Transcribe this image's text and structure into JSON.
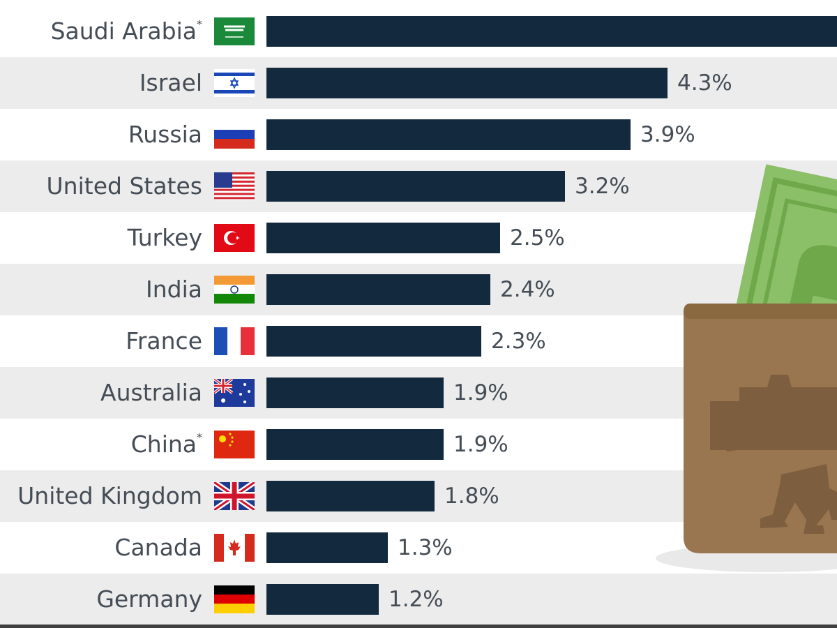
{
  "chart_data": {
    "type": "bar",
    "orientation": "horizontal",
    "categories": [
      "Saudi Arabia",
      "Israel",
      "Russia",
      "United States",
      "Turkey",
      "India",
      "France",
      "Australia",
      "China",
      "United Kingdom",
      "Canada",
      "Germany"
    ],
    "footnote_marks": [
      "*",
      "",
      "",
      "",
      "",
      "",
      "",
      "",
      "*",
      "",
      "",
      ""
    ],
    "values": [
      null,
      4.3,
      3.9,
      3.2,
      2.5,
      2.4,
      2.3,
      1.9,
      1.9,
      1.8,
      1.3,
      1.2
    ],
    "value_labels": [
      "",
      "4.3%",
      "3.9%",
      "3.2%",
      "2.5%",
      "2.4%",
      "2.3%",
      "1.9%",
      "1.9%",
      "1.8%",
      "1.3%",
      "1.2%"
    ],
    "flag_icons": [
      "saudi-arabia-flag-icon",
      "israel-flag-icon",
      "russia-flag-icon",
      "united-states-flag-icon",
      "turkey-flag-icon",
      "india-flag-icon",
      "france-flag-icon",
      "australia-flag-icon",
      "china-flag-icon",
      "united-kingdom-flag-icon",
      "canada-flag-icon",
      "germany-flag-icon"
    ],
    "unit": "%",
    "bar_color": "#13293d",
    "row_alt_color": "#ececec"
  }
}
